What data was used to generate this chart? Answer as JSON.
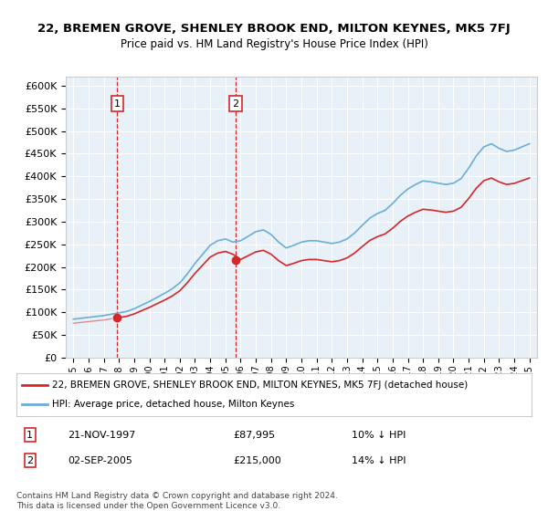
{
  "title": "22, BREMEN GROVE, SHENLEY BROOK END, MILTON KEYNES, MK5 7FJ",
  "subtitle": "Price paid vs. HM Land Registry's House Price Index (HPI)",
  "sale1_date": 1997.89,
  "sale1_price": 87995,
  "sale1_label": "1",
  "sale1_annotation": "21-NOV-1997",
  "sale1_price_str": "£87,995",
  "sale1_hpi_str": "10% ↓ HPI",
  "sale2_date": 2005.67,
  "sale2_price": 215000,
  "sale2_label": "2",
  "sale2_annotation": "02-SEP-2005",
  "sale2_price_str": "£215,000",
  "sale2_hpi_str": "14% ↓ HPI",
  "legend_line1": "22, BREMEN GROVE, SHENLEY BROOK END, MILTON KEYNES, MK5 7FJ (detached house)",
  "legend_line2": "HPI: Average price, detached house, Milton Keynes",
  "footer1": "Contains HM Land Registry data © Crown copyright and database right 2024.",
  "footer2": "This data is licensed under the Open Government Licence v3.0.",
  "hpi_color": "#6baed6",
  "sale_color": "#d62728",
  "background_color": "#e8f0f8",
  "ylim_min": 0,
  "ylim_max": 620000,
  "xlim_min": 1994.5,
  "xlim_max": 2025.5
}
